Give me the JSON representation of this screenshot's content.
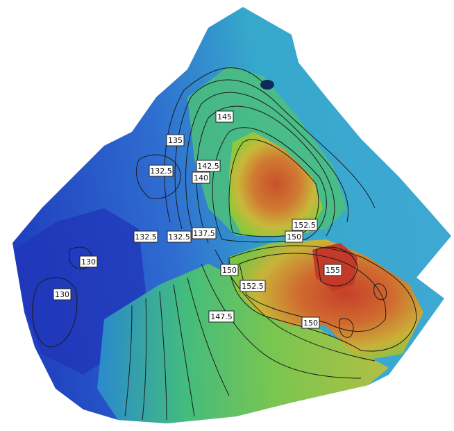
{
  "map": {
    "type": "bathymetric-contour-map",
    "colors": {
      "low": "#1f3fbf",
      "mid": "#35b0c8",
      "green": "#56c84a",
      "yellow": "#d8c23a",
      "high": "#c8512a",
      "contour_line": "#1a1a1a",
      "background": "#ffffff"
    },
    "contour_labels": [
      "145",
      "135",
      "142.5",
      "132.5",
      "140",
      "152.5",
      "150",
      "132.5",
      "132.5",
      "137.5",
      "130",
      "150",
      "155",
      "152.5",
      "130",
      "147.5",
      "150"
    ]
  }
}
